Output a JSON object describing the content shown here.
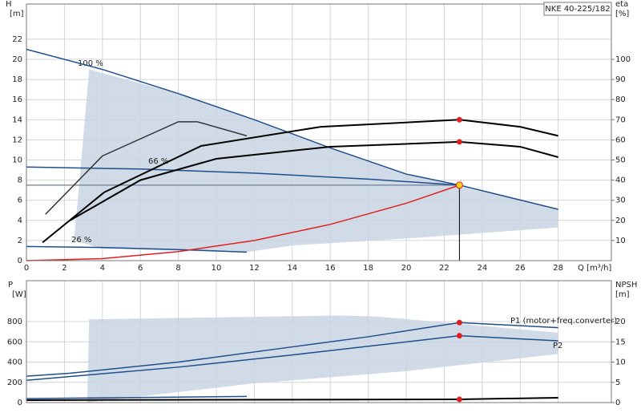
{
  "chart_data": [
    {
      "type": "line",
      "title": "NKE 40-225/182",
      "y_label": "H",
      "y_unit": "[m]",
      "y2_label": "eta",
      "y2_unit": "[%]",
      "x_label": "Q [m³/h]",
      "xlim": [
        0,
        30.8
      ],
      "xticks": [
        0,
        2,
        4,
        6,
        8,
        10,
        12,
        14,
        16,
        18,
        20,
        22,
        24,
        26,
        28
      ],
      "ylim": [
        0,
        25.5
      ],
      "yticks": [
        0,
        2,
        4,
        6,
        8,
        10,
        12,
        14,
        16,
        18,
        20,
        22
      ],
      "y2lim": [
        0,
        127.5
      ],
      "y2ticks": [
        10,
        20,
        30,
        40,
        50,
        60,
        70,
        80,
        90,
        100
      ],
      "grid": true,
      "duty_point": {
        "q": 22.8,
        "h": 7.5
      },
      "series": [
        {
          "color": "#c9d5e3",
          "area": true,
          "x": [
            3.3,
            8,
            12,
            16,
            20,
            28,
            28,
            20,
            14,
            11.6,
            8,
            4,
            2.5,
            2.8
          ],
          "values": [
            19,
            16.6,
            14,
            11.2,
            8.6,
            5.1,
            3.3,
            2.2,
            1.5,
            0.85,
            1,
            1.2,
            2,
            8
          ]
        },
        {
          "name": "100 %",
          "color": "#1f4e8c",
          "x": [
            0,
            4,
            8,
            12,
            16,
            20,
            22.8,
            28
          ],
          "values": [
            21,
            19,
            16.6,
            14,
            11.2,
            8.6,
            7.5,
            5.1
          ]
        },
        {
          "name": "66 %",
          "color": "#1f4e8c",
          "x": [
            0,
            6,
            12,
            18,
            22.8
          ],
          "values": [
            9.3,
            9.1,
            8.7,
            8.1,
            7.5
          ]
        },
        {
          "name": "26 %",
          "color": "#1f4e8c",
          "x": [
            0,
            4,
            8,
            11.6
          ],
          "values": [
            1.4,
            1.3,
            1.1,
            0.85
          ]
        },
        {
          "color": "#e02020",
          "x": [
            0,
            4,
            8,
            12,
            16,
            20,
            22.8
          ],
          "values": [
            0,
            0.2,
            0.9,
            2,
            3.6,
            5.7,
            7.5
          ]
        },
        {
          "color": "#000000",
          "axis": "y2",
          "dot": true,
          "x": [
            0.85,
            4.1,
            9.2,
            15.5,
            22.8,
            26,
            28
          ],
          "values": [
            9,
            34,
            57,
            66.5,
            70,
            66.5,
            62
          ]
        },
        {
          "color": "#000000",
          "axis": "y2",
          "dot": true,
          "x": [
            2.3,
            6,
            10,
            16,
            22.8,
            26,
            28
          ],
          "values": [
            20,
            40,
            50.6,
            56.6,
            59,
            56.6,
            51.4
          ]
        },
        {
          "color": "#333333",
          "axis": "y2",
          "x": [
            1,
            4,
            8,
            9,
            11.6
          ],
          "values": [
            23,
            52,
            69,
            69,
            62
          ]
        }
      ]
    },
    {
      "type": "line",
      "y_label": "P",
      "y_unit": "[W]",
      "y2_label": "NPSH",
      "y2_unit": "[m]",
      "xlim": [
        0,
        30.8
      ],
      "xticks": [
        0,
        2,
        4,
        6,
        8,
        10,
        12,
        14,
        16,
        18,
        20,
        22,
        24,
        26,
        28
      ],
      "ylim": [
        0,
        1204
      ],
      "yticks": [
        0,
        200,
        400,
        600,
        800
      ],
      "y2lim": [
        0,
        30.1
      ],
      "y2ticks": [
        0,
        5,
        10,
        15,
        20
      ],
      "grid": true,
      "series": [
        {
          "color": "#c9d5e3",
          "area": true,
          "x": [
            3.3,
            16.5,
            18.5,
            28,
            28,
            20,
            12,
            6,
            4.5,
            3.2
          ],
          "values": [
            822,
            860,
            850,
            690,
            480,
            310,
            190,
            60,
            30,
            0
          ]
        },
        {
          "name": "P1 (motor+freq.converter)",
          "color": "#1f4e8c",
          "dot": true,
          "x": [
            0,
            2.3,
            8,
            14,
            18,
            22.8,
            28
          ],
          "values": [
            260,
            290,
            400,
            550,
            650,
            790,
            740
          ]
        },
        {
          "name": "P2",
          "color": "#1f4e8c",
          "dot": true,
          "x": [
            0,
            8,
            14,
            22.8,
            28
          ],
          "values": [
            220,
            350,
            470,
            660,
            610
          ]
        },
        {
          "color": "#1f4e8c",
          "x": [
            0,
            11.6
          ],
          "values": [
            40,
            60
          ]
        },
        {
          "color": "#000000",
          "axis": "y2",
          "dot": true,
          "x": [
            0,
            22.8,
            28
          ],
          "values": [
            0.6,
            0.8,
            1.2
          ]
        }
      ]
    }
  ]
}
